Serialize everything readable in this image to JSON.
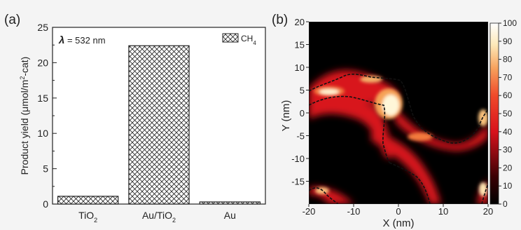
{
  "chart_data": [
    {
      "panel_label": "(a)",
      "type": "bar",
      "categories": [
        "TiO",
        "Au/TiO",
        "Au"
      ],
      "category_subscripts": [
        "2",
        "2",
        ""
      ],
      "values": [
        1.1,
        22.4,
        0.3
      ],
      "ylabel_main": "Product yield (μmol/m",
      "ylabel_sup": "2",
      "ylabel_tail": "-cat)",
      "ylim": [
        0,
        25
      ],
      "yticks": [
        "0",
        "5",
        "10",
        "15",
        "20",
        "25"
      ],
      "annotation_symbol": "λ",
      "annotation_text": " = 532 nm",
      "legend_main": "CH",
      "legend_sub": "4",
      "legend_placement": "top-right",
      "grid": false,
      "bar_fill": "crosshatch"
    },
    {
      "panel_label": "(b)",
      "type": "heatmap",
      "xlabel": "X (nm)",
      "ylabel": "Y (nm)",
      "xlim": [
        -20,
        20
      ],
      "ylim": [
        -20,
        20
      ],
      "xticks": [
        "-20",
        "-10",
        "0",
        "10",
        "20"
      ],
      "yticks": [
        "20",
        "15",
        "10",
        "5",
        "0",
        "-5",
        "-10",
        "-15"
      ],
      "colorbar_ticks": [
        "100",
        "90",
        "80",
        "70",
        "60",
        "50",
        "40",
        "30",
        "20",
        "10",
        "0"
      ],
      "colorbar_range": [
        0,
        100
      ],
      "colors": {
        "low": "#000000",
        "mid": "#e0141e",
        "high": "#ffffff"
      },
      "contour_style": "dashed"
    }
  ]
}
